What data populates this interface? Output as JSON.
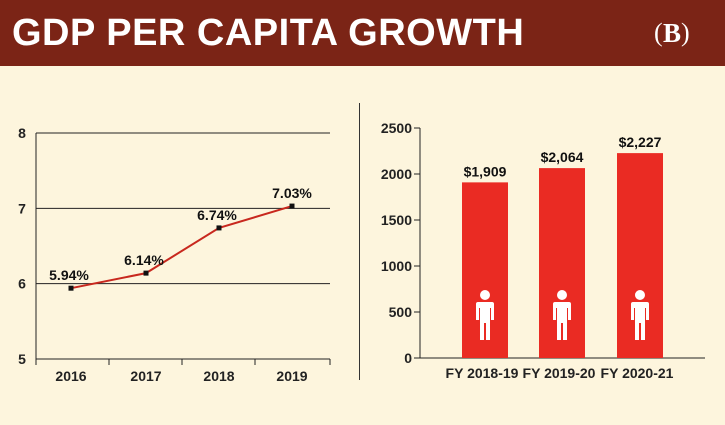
{
  "header": {
    "title": "GDP PER CAPITA GROWTH",
    "logo_text": "B",
    "background_color": "#7b2416"
  },
  "chart_data": [
    {
      "type": "line",
      "x": [
        "2016",
        "2017",
        "2018",
        "2019"
      ],
      "series": [
        {
          "values": [
            5.94,
            6.14,
            6.74,
            7.03
          ],
          "labels": [
            "5.94%",
            "6.14%",
            "6.74%",
            "7.03%"
          ],
          "color": "#c8281e"
        }
      ],
      "ylim": [
        5,
        8
      ],
      "yticks": [
        5,
        6,
        7,
        8
      ],
      "grid": true
    },
    {
      "type": "bar",
      "categories": [
        "FY 2018-19",
        "FY 2019-20",
        "FY 2020-21"
      ],
      "values": [
        1909,
        2064,
        2227
      ],
      "labels": [
        "$1,909",
        "$2,064",
        "$2,227"
      ],
      "ylim": [
        0,
        2500
      ],
      "yticks": [
        0,
        500,
        1000,
        1500,
        2000,
        2500
      ],
      "bar_color": "#ea2b23",
      "icon": "person-icon",
      "grid": false
    }
  ]
}
